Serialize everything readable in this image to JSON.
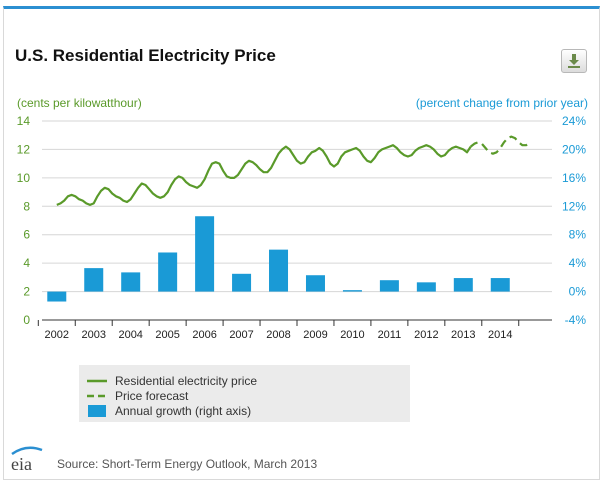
{
  "header": {
    "title": "U.S. Residential Electricity Price",
    "download_icon": "download-icon"
  },
  "colors": {
    "price_line": "#5a9a2a",
    "bars": "#1a9ad6",
    "accent": "#2b8fd1"
  },
  "chart_data": {
    "type": "line+bar",
    "title": "U.S. Residential Electricity Price",
    "ylabel_left": "(cents per kilowatthour)",
    "ylabel_right": "(percent change from prior year)",
    "ylim_left": [
      0,
      14
    ],
    "ylim_right": [
      -4,
      24
    ],
    "left_ticks": [
      "0",
      "2",
      "4",
      "6",
      "8",
      "10",
      "12",
      "14"
    ],
    "right_ticks": [
      "-4%",
      "0%",
      "4%",
      "8%",
      "12%",
      "16%",
      "20%",
      "24%"
    ],
    "categories": [
      "2002",
      "2003",
      "2004",
      "2005",
      "2006",
      "2007",
      "2008",
      "2009",
      "2010",
      "2011",
      "2012",
      "2013",
      "2014"
    ],
    "grid": true,
    "series": [
      {
        "name": "Residential electricity price",
        "type": "line",
        "style": "solid",
        "x": [
          2002.0,
          2002.1,
          2002.2,
          2002.3,
          2002.4,
          2002.5,
          2002.6,
          2002.7,
          2002.8,
          2002.9,
          2003.0,
          2003.1,
          2003.2,
          2003.3,
          2003.4,
          2003.5,
          2003.6,
          2003.7,
          2003.8,
          2003.9,
          2004.0,
          2004.1,
          2004.2,
          2004.3,
          2004.4,
          2004.5,
          2004.6,
          2004.7,
          2004.8,
          2004.9,
          2005.0,
          2005.1,
          2005.2,
          2005.3,
          2005.4,
          2005.5,
          2005.6,
          2005.7,
          2005.8,
          2005.9,
          2006.0,
          2006.1,
          2006.2,
          2006.3,
          2006.4,
          2006.5,
          2006.6,
          2006.7,
          2006.8,
          2006.9,
          2007.0,
          2007.1,
          2007.2,
          2007.3,
          2007.4,
          2007.5,
          2007.6,
          2007.7,
          2007.8,
          2007.9,
          2008.0,
          2008.1,
          2008.2,
          2008.3,
          2008.4,
          2008.5,
          2008.6,
          2008.7,
          2008.8,
          2008.9,
          2009.0,
          2009.1,
          2009.2,
          2009.3,
          2009.4,
          2009.5,
          2009.6,
          2009.7,
          2009.8,
          2009.9,
          2010.0,
          2010.1,
          2010.2,
          2010.3,
          2010.4,
          2010.5,
          2010.6,
          2010.7,
          2010.8,
          2010.9,
          2011.0,
          2011.1,
          2011.2,
          2011.3,
          2011.4,
          2011.5,
          2011.6,
          2011.7,
          2011.8,
          2011.9,
          2012.0,
          2012.1,
          2012.2,
          2012.3,
          2012.4,
          2012.5,
          2012.6,
          2012.7,
          2012.8,
          2012.9,
          2013.0,
          2013.1,
          2013.2
        ],
        "values": [
          8.1,
          8.2,
          8.4,
          8.7,
          8.8,
          8.7,
          8.5,
          8.4,
          8.2,
          8.1,
          8.2,
          8.7,
          9.1,
          9.3,
          9.2,
          8.9,
          8.7,
          8.6,
          8.4,
          8.3,
          8.5,
          8.9,
          9.3,
          9.6,
          9.5,
          9.2,
          8.9,
          8.7,
          8.6,
          8.7,
          9.0,
          9.5,
          9.9,
          10.1,
          10.0,
          9.7,
          9.5,
          9.4,
          9.3,
          9.5,
          9.9,
          10.5,
          11.0,
          11.1,
          11.0,
          10.5,
          10.1,
          10.0,
          10.0,
          10.2,
          10.6,
          11.0,
          11.2,
          11.1,
          10.9,
          10.6,
          10.4,
          10.4,
          10.7,
          11.2,
          11.7,
          12.0,
          12.2,
          12.0,
          11.6,
          11.2,
          11.0,
          11.1,
          11.5,
          11.8,
          11.9,
          12.1,
          11.9,
          11.5,
          11.0,
          10.8,
          11.0,
          11.5,
          11.8,
          11.9,
          12.0,
          12.1,
          11.9,
          11.5,
          11.2,
          11.1,
          11.4,
          11.8,
          12.0,
          12.1,
          12.2,
          12.3,
          12.1,
          11.8,
          11.6,
          11.5,
          11.6,
          11.9,
          12.1,
          12.2,
          12.3,
          12.2,
          12.0,
          11.7,
          11.5,
          11.6,
          11.9,
          12.1,
          12.2,
          12.1,
          12.0,
          11.8,
          12.2
        ]
      },
      {
        "name": "Price forecast",
        "type": "line",
        "style": "dashed",
        "x": [
          2013.2,
          2013.3,
          2013.4,
          2013.5,
          2013.6,
          2013.7,
          2013.8,
          2013.9,
          2014.0,
          2014.1,
          2014.2,
          2014.3,
          2014.4,
          2014.5,
          2014.6,
          2014.7,
          2014.8
        ],
        "values": [
          12.2,
          12.4,
          12.5,
          12.4,
          12.1,
          11.8,
          11.7,
          11.8,
          12.1,
          12.5,
          12.8,
          12.9,
          12.8,
          12.5,
          12.3,
          12.3,
          12.5
        ]
      },
      {
        "name": "Annual growth (right axis)",
        "type": "bar",
        "axis": "right",
        "x": [
          2002,
          2003,
          2004,
          2005,
          2006,
          2007,
          2008,
          2009,
          2010,
          2011,
          2012,
          2013,
          2014
        ],
        "values": [
          -1.4,
          3.3,
          2.7,
          5.5,
          10.6,
          2.5,
          5.9,
          2.3,
          0.2,
          1.6,
          1.3,
          1.9,
          1.9
        ]
      }
    ]
  },
  "legend": {
    "items": [
      {
        "label": "Residential electricity price",
        "style": "solid-line"
      },
      {
        "label": "Price forecast",
        "style": "dashed-line"
      },
      {
        "label": "Annual growth (right axis)",
        "style": "bar"
      }
    ]
  },
  "footer": {
    "logo_text": "eia",
    "source": "Source: Short-Term Energy Outlook, March 2013"
  }
}
